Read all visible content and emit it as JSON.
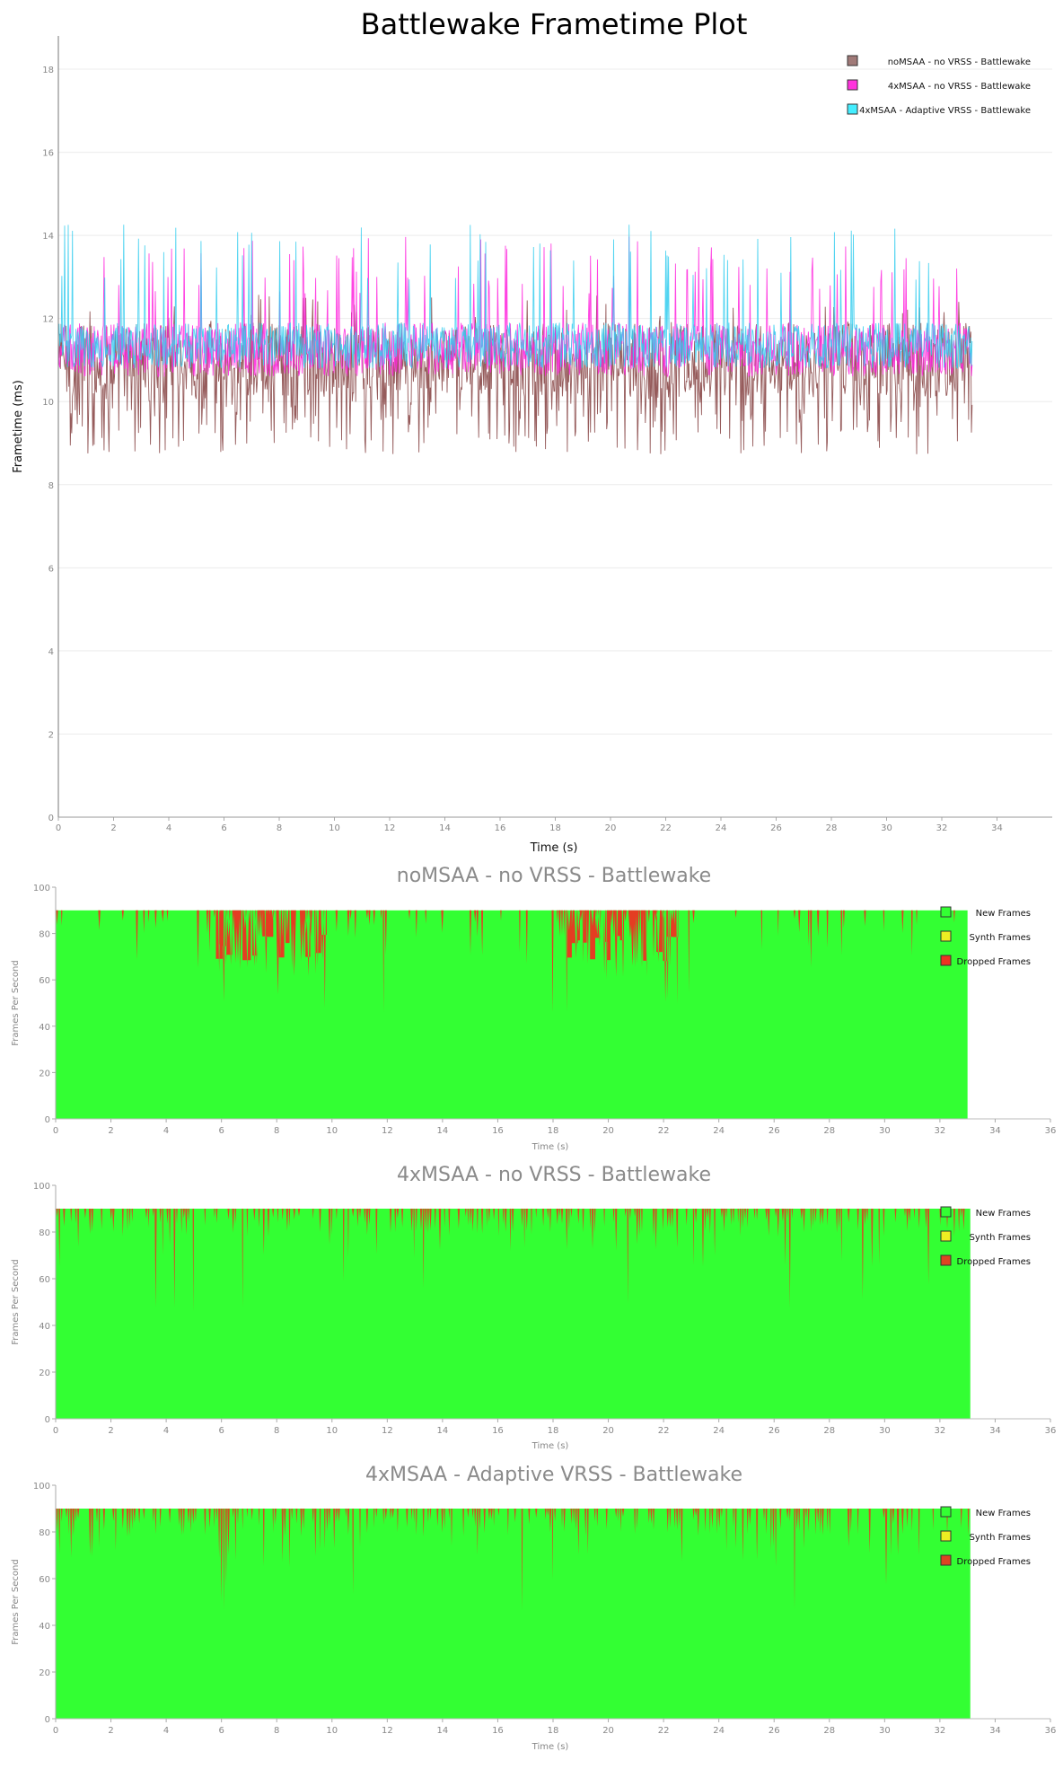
{
  "chart_data": [
    {
      "type": "line",
      "title": "Battlewake Frametime Plot",
      "xlabel": "Time (s)",
      "ylabel": "Frametime (ms)",
      "xlim": [
        0,
        36
      ],
      "ylim": [
        0,
        18.8
      ],
      "xticks": [
        0,
        2,
        4,
        6,
        8,
        10,
        12,
        14,
        16,
        18,
        20,
        22,
        24,
        26,
        28,
        30,
        32,
        34
      ],
      "yticks": [
        0,
        2,
        4,
        6,
        8,
        10,
        12,
        14,
        16,
        18
      ],
      "grid": true,
      "legend_position": "top-right",
      "duration_s": 33.1,
      "series": [
        {
          "name": "noMSAA - no VRSS - Battlewake",
          "color": "#8b4a4a",
          "legend_color": "#a07a78",
          "band_ms": [
            10.1,
            11.9
          ],
          "spike_range_ms": [
            8.7,
            12.6
          ]
        },
        {
          "name": "4xMSAA - no VRSS - Battlewake",
          "color": "#ff22dd",
          "legend_color": "#ff33dd",
          "band_ms": [
            10.6,
            11.9
          ],
          "spike_range_ms": [
            10.6,
            14.0
          ]
        },
        {
          "name": "4xMSAA - Adaptive VRSS - Battlewake",
          "color": "#33ccee",
          "legend_color": "#44eeff",
          "band_ms": [
            10.8,
            11.9
          ],
          "spike_range_ms": [
            10.8,
            14.3
          ]
        }
      ]
    },
    {
      "type": "area",
      "title": "noMSAA - no VRSS - Battlewake",
      "xlabel": "Time (s)",
      "ylabel": "Frames Per Second",
      "xlim": [
        0,
        36
      ],
      "ylim": [
        0,
        100
      ],
      "xticks": [
        0,
        2,
        4,
        6,
        8,
        10,
        12,
        14,
        16,
        18,
        20,
        22,
        24,
        26,
        28,
        30,
        32,
        34,
        36
      ],
      "yticks": [
        0,
        20,
        40,
        60,
        80,
        100
      ],
      "legend_position": "top-right",
      "refresh_fps": 90,
      "duration_s": 33.0,
      "series": [
        {
          "name": "New Frames",
          "color": "#33ff33"
        },
        {
          "name": "Synth Frames",
          "color": "#eeee22"
        },
        {
          "name": "Dropped Frames",
          "color": "#ee3322"
        }
      ],
      "heavy_drop_regions_s": [
        [
          5.8,
          9.8
        ],
        [
          18.5,
          22.5
        ]
      ]
    },
    {
      "type": "area",
      "title": "4xMSAA - no VRSS - Battlewake",
      "xlabel": "Time (s)",
      "ylabel": "Frames Per Second",
      "xlim": [
        0,
        36
      ],
      "ylim": [
        0,
        100
      ],
      "xticks": [
        0,
        2,
        4,
        6,
        8,
        10,
        12,
        14,
        16,
        18,
        20,
        22,
        24,
        26,
        28,
        30,
        32,
        34,
        36
      ],
      "yticks": [
        0,
        20,
        40,
        60,
        80,
        100
      ],
      "legend_position": "top-right",
      "refresh_fps": 90,
      "duration_s": 33.1,
      "series": [
        {
          "name": "New Frames",
          "color": "#33ff33"
        },
        {
          "name": "Synth Frames",
          "color": "#eeee22"
        },
        {
          "name": "Dropped Frames",
          "color": "#dd4422"
        }
      ],
      "heavy_drop_regions_s": []
    },
    {
      "type": "area",
      "title": "4xMSAA - Adaptive VRSS - Battlewake",
      "xlabel": "Time (s)",
      "ylabel": "Frames Per Second",
      "xlim": [
        0,
        36
      ],
      "ylim": [
        0,
        100
      ],
      "xticks": [
        0,
        2,
        4,
        6,
        8,
        10,
        12,
        14,
        16,
        18,
        20,
        22,
        24,
        26,
        28,
        30,
        32,
        34,
        36
      ],
      "yticks": [
        0,
        20,
        40,
        60,
        80,
        100
      ],
      "legend_position": "top-right",
      "refresh_fps": 90,
      "duration_s": 33.1,
      "series": [
        {
          "name": "New Frames",
          "color": "#33ff33"
        },
        {
          "name": "Synth Frames",
          "color": "#eeee22"
        },
        {
          "name": "Dropped Frames",
          "color": "#dd4422"
        }
      ],
      "heavy_drop_regions_s": []
    }
  ]
}
